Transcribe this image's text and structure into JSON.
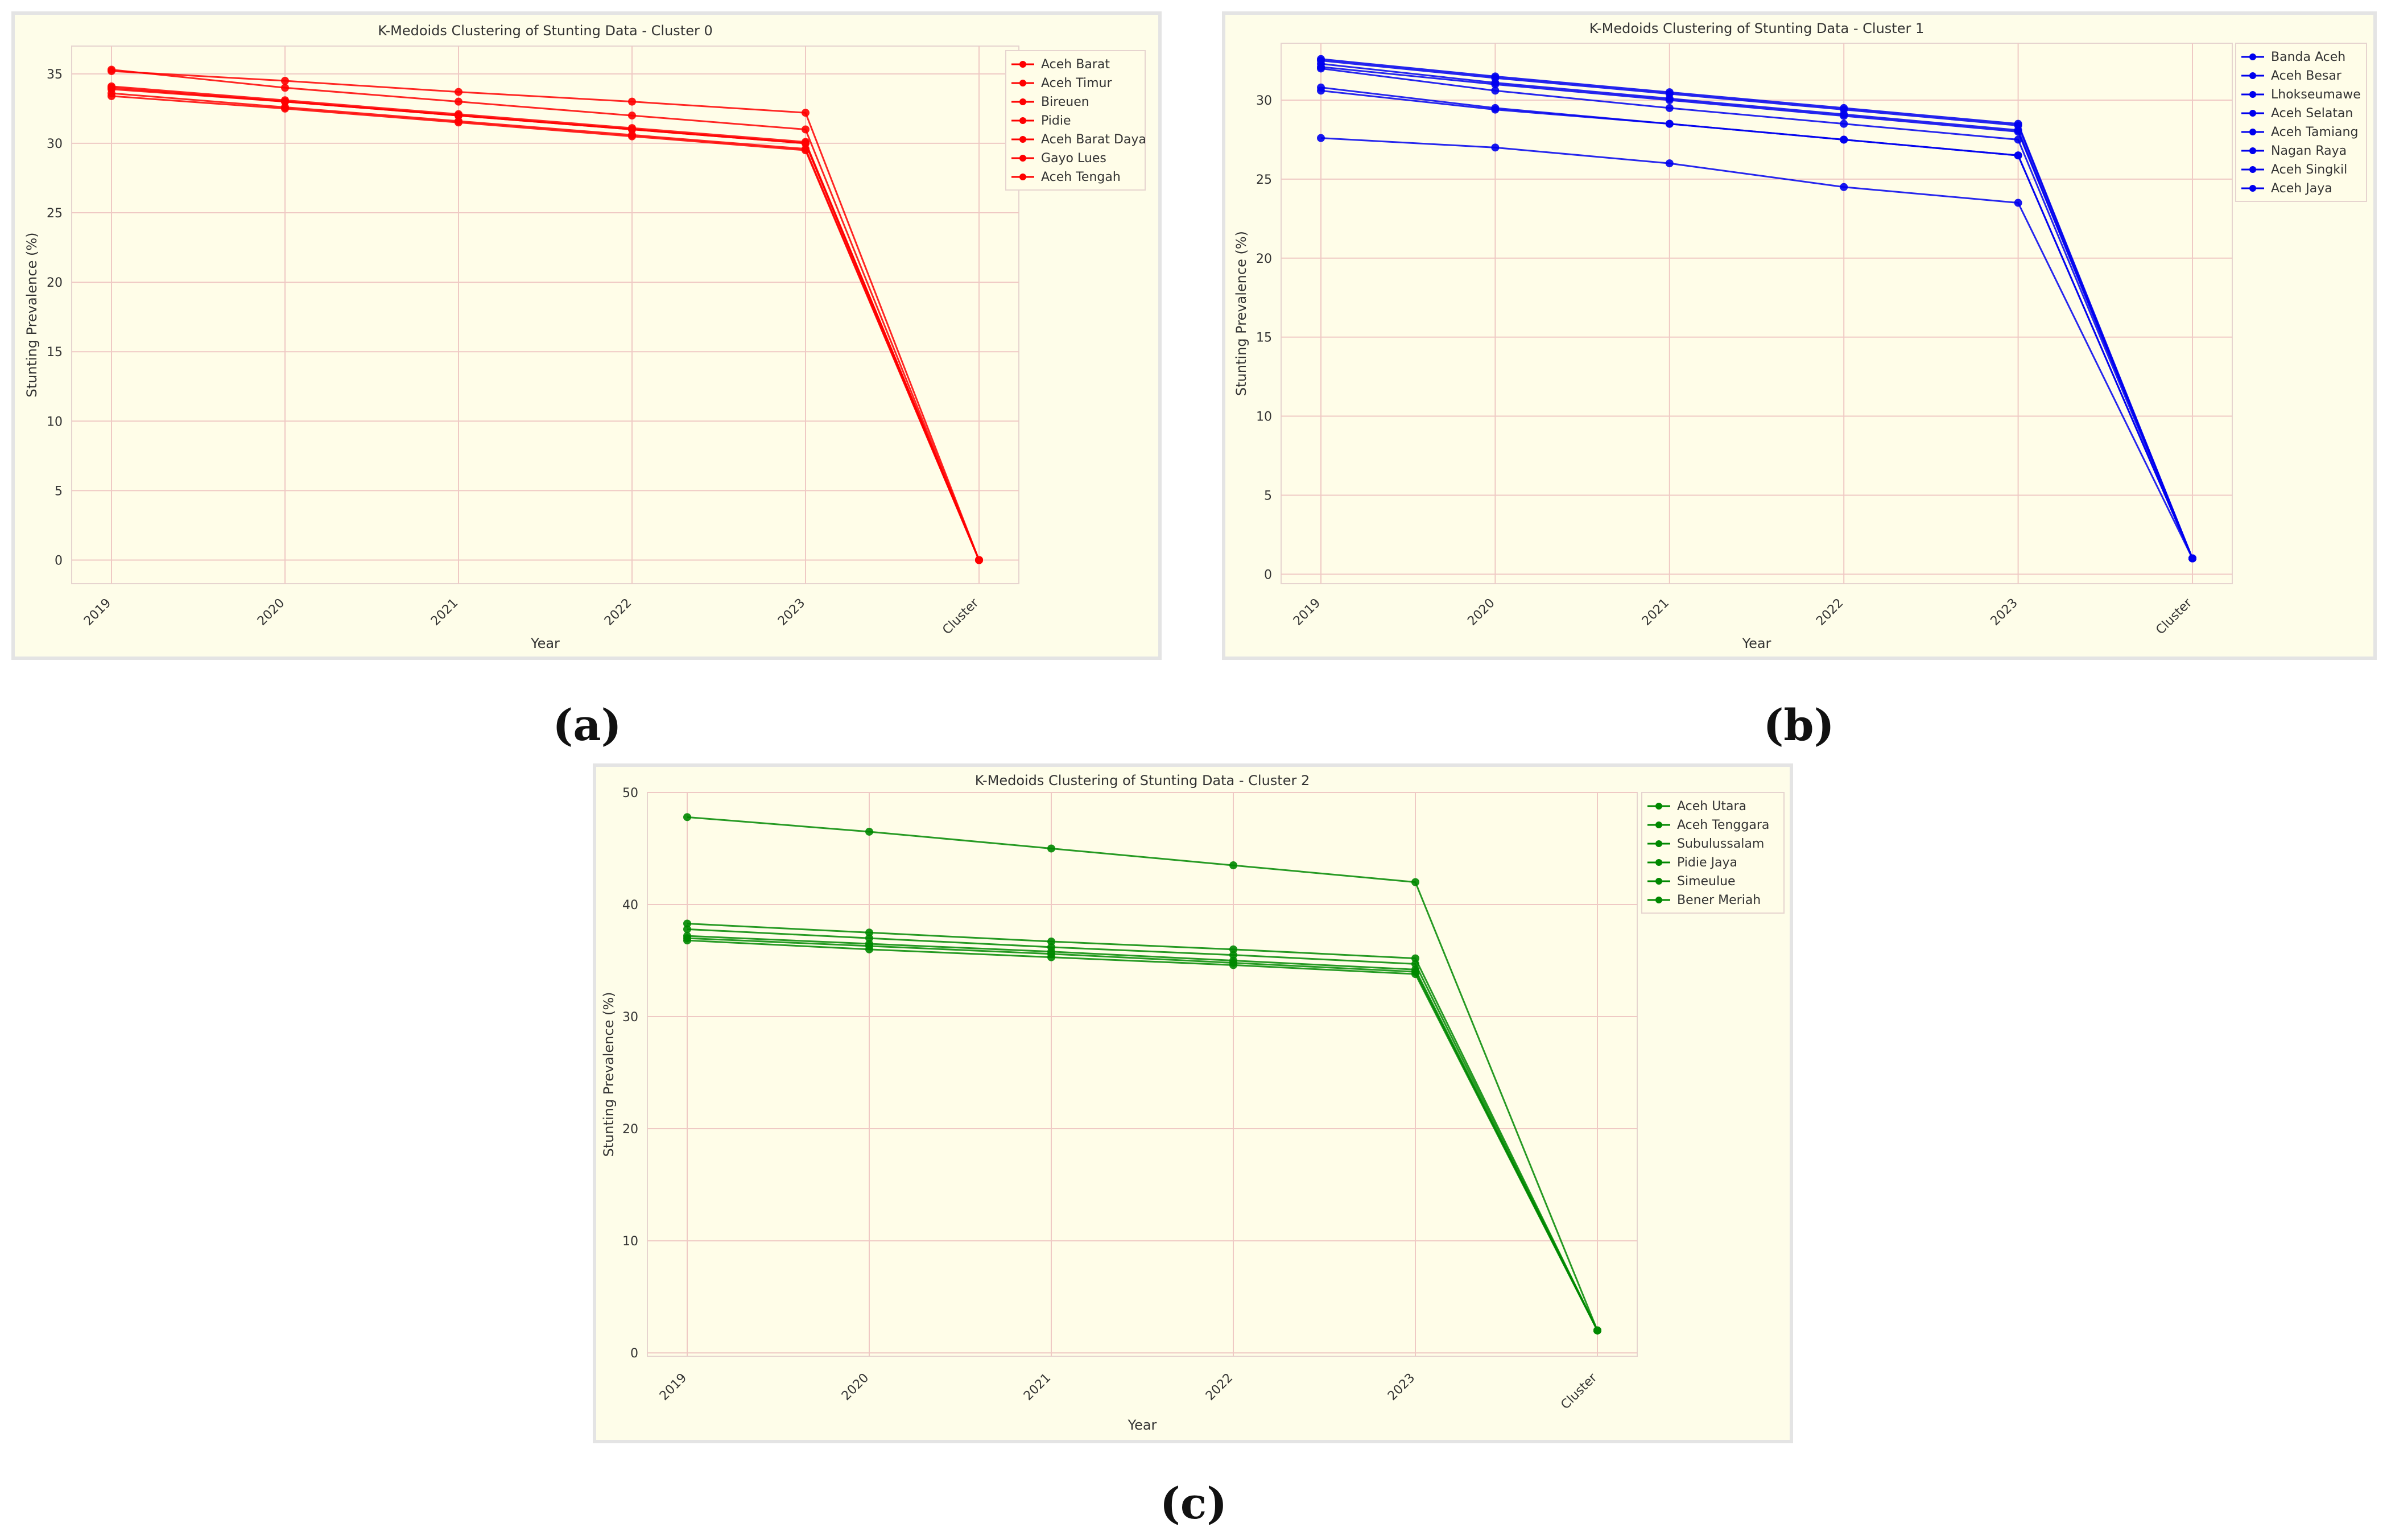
{
  "captions": {
    "a": "(a)",
    "b": "(b)",
    "c": "(c)"
  },
  "chart_data": [
    {
      "type": "line",
      "title": "K-Medoids Clustering of Stunting Data - Cluster 0",
      "xlabel": "Year",
      "ylabel": "Stunting Prevalence (%)",
      "categories": [
        "2019",
        "2020",
        "2021",
        "2022",
        "2023",
        "Cluster"
      ],
      "ylim": [
        -1.7,
        37
      ],
      "yticks": [
        0,
        5,
        10,
        15,
        20,
        25,
        30,
        35
      ],
      "color": "#ff0000",
      "grid": true,
      "legend": "top-right",
      "series": [
        {
          "name": "Aceh Barat",
          "values": [
            35.2,
            34.5,
            33.7,
            33.0,
            32.2,
            0
          ]
        },
        {
          "name": "Aceh Timur",
          "values": [
            34.1,
            33.1,
            32.1,
            31.1,
            30.1,
            0
          ]
        },
        {
          "name": "Bireuen",
          "values": [
            35.3,
            34.0,
            33.0,
            32.0,
            31.0,
            0
          ]
        },
        {
          "name": "Pidie",
          "values": [
            33.9,
            33.0,
            32.0,
            31.0,
            30.0,
            0
          ]
        },
        {
          "name": "Aceh Barat Daya",
          "values": [
            33.6,
            32.6,
            31.6,
            30.6,
            29.6,
            0
          ]
        },
        {
          "name": "Gayo Lues",
          "values": [
            33.4,
            32.5,
            31.5,
            30.5,
            29.5,
            0
          ]
        },
        {
          "name": "Aceh Tengah",
          "values": [
            34.0,
            33.0,
            32.0,
            31.0,
            30.0,
            0
          ]
        }
      ]
    },
    {
      "type": "line",
      "title": "K-Medoids Clustering of Stunting Data - Cluster 1",
      "xlabel": "Year",
      "ylabel": "Stunting Prevalence (%)",
      "categories": [
        "2019",
        "2020",
        "2021",
        "2022",
        "2023",
        "Cluster"
      ],
      "ylim": [
        -0.6,
        33.6
      ],
      "yticks": [
        0,
        5,
        10,
        15,
        20,
        25,
        30
      ],
      "color": "#0000ee",
      "grid": true,
      "legend": "top-right",
      "series": [
        {
          "name": "Banda Aceh",
          "values": [
            32.6,
            31.5,
            30.5,
            29.5,
            28.5,
            1
          ]
        },
        {
          "name": "Aceh Besar",
          "values": [
            32.3,
            31.1,
            30.1,
            29.1,
            28.1,
            1
          ]
        },
        {
          "name": "Lhokseumawe",
          "values": [
            32.0,
            30.6,
            29.5,
            28.5,
            27.5,
            1
          ]
        },
        {
          "name": "Aceh Selatan",
          "values": [
            30.8,
            29.5,
            28.5,
            27.5,
            26.5,
            1
          ]
        },
        {
          "name": "Aceh Tamiang",
          "values": [
            27.6,
            27.0,
            26.0,
            24.5,
            23.5,
            1
          ]
        },
        {
          "name": "Nagan Raya",
          "values": [
            30.6,
            29.4,
            28.5,
            27.5,
            26.5,
            1
          ]
        },
        {
          "name": "Aceh Singkil",
          "values": [
            32.1,
            31.0,
            30.0,
            29.0,
            28.0,
            1
          ]
        },
        {
          "name": "Aceh Jaya",
          "values": [
            32.5,
            31.4,
            30.4,
            29.4,
            28.4,
            1
          ]
        }
      ]
    },
    {
      "type": "line",
      "title": "K-Medoids Clustering of Stunting Data - Cluster 2",
      "xlabel": "Year",
      "ylabel": "Stunting Prevalence (%)",
      "categories": [
        "2019",
        "2020",
        "2021",
        "2022",
        "2023",
        "Cluster"
      ],
      "ylim": [
        -0.3,
        50
      ],
      "yticks": [
        0,
        10,
        20,
        30,
        40,
        50
      ],
      "color": "#008800",
      "grid": true,
      "legend": "top-right",
      "series": [
        {
          "name": "Aceh Utara",
          "values": [
            47.8,
            46.5,
            45.0,
            43.5,
            42.0,
            2
          ]
        },
        {
          "name": "Aceh Tenggara",
          "values": [
            38.3,
            37.5,
            36.7,
            36.0,
            35.2,
            2
          ]
        },
        {
          "name": "Subulussalam",
          "values": [
            37.8,
            37.0,
            36.2,
            35.5,
            34.7,
            2
          ]
        },
        {
          "name": "Pidie Jaya",
          "values": [
            37.2,
            36.5,
            35.8,
            35.0,
            34.2,
            2
          ]
        },
        {
          "name": "Simeulue",
          "values": [
            36.8,
            36.0,
            35.3,
            34.6,
            33.8,
            2
          ]
        },
        {
          "name": "Bener Meriah",
          "values": [
            37.0,
            36.3,
            35.6,
            34.8,
            34.0,
            2
          ]
        }
      ]
    }
  ]
}
